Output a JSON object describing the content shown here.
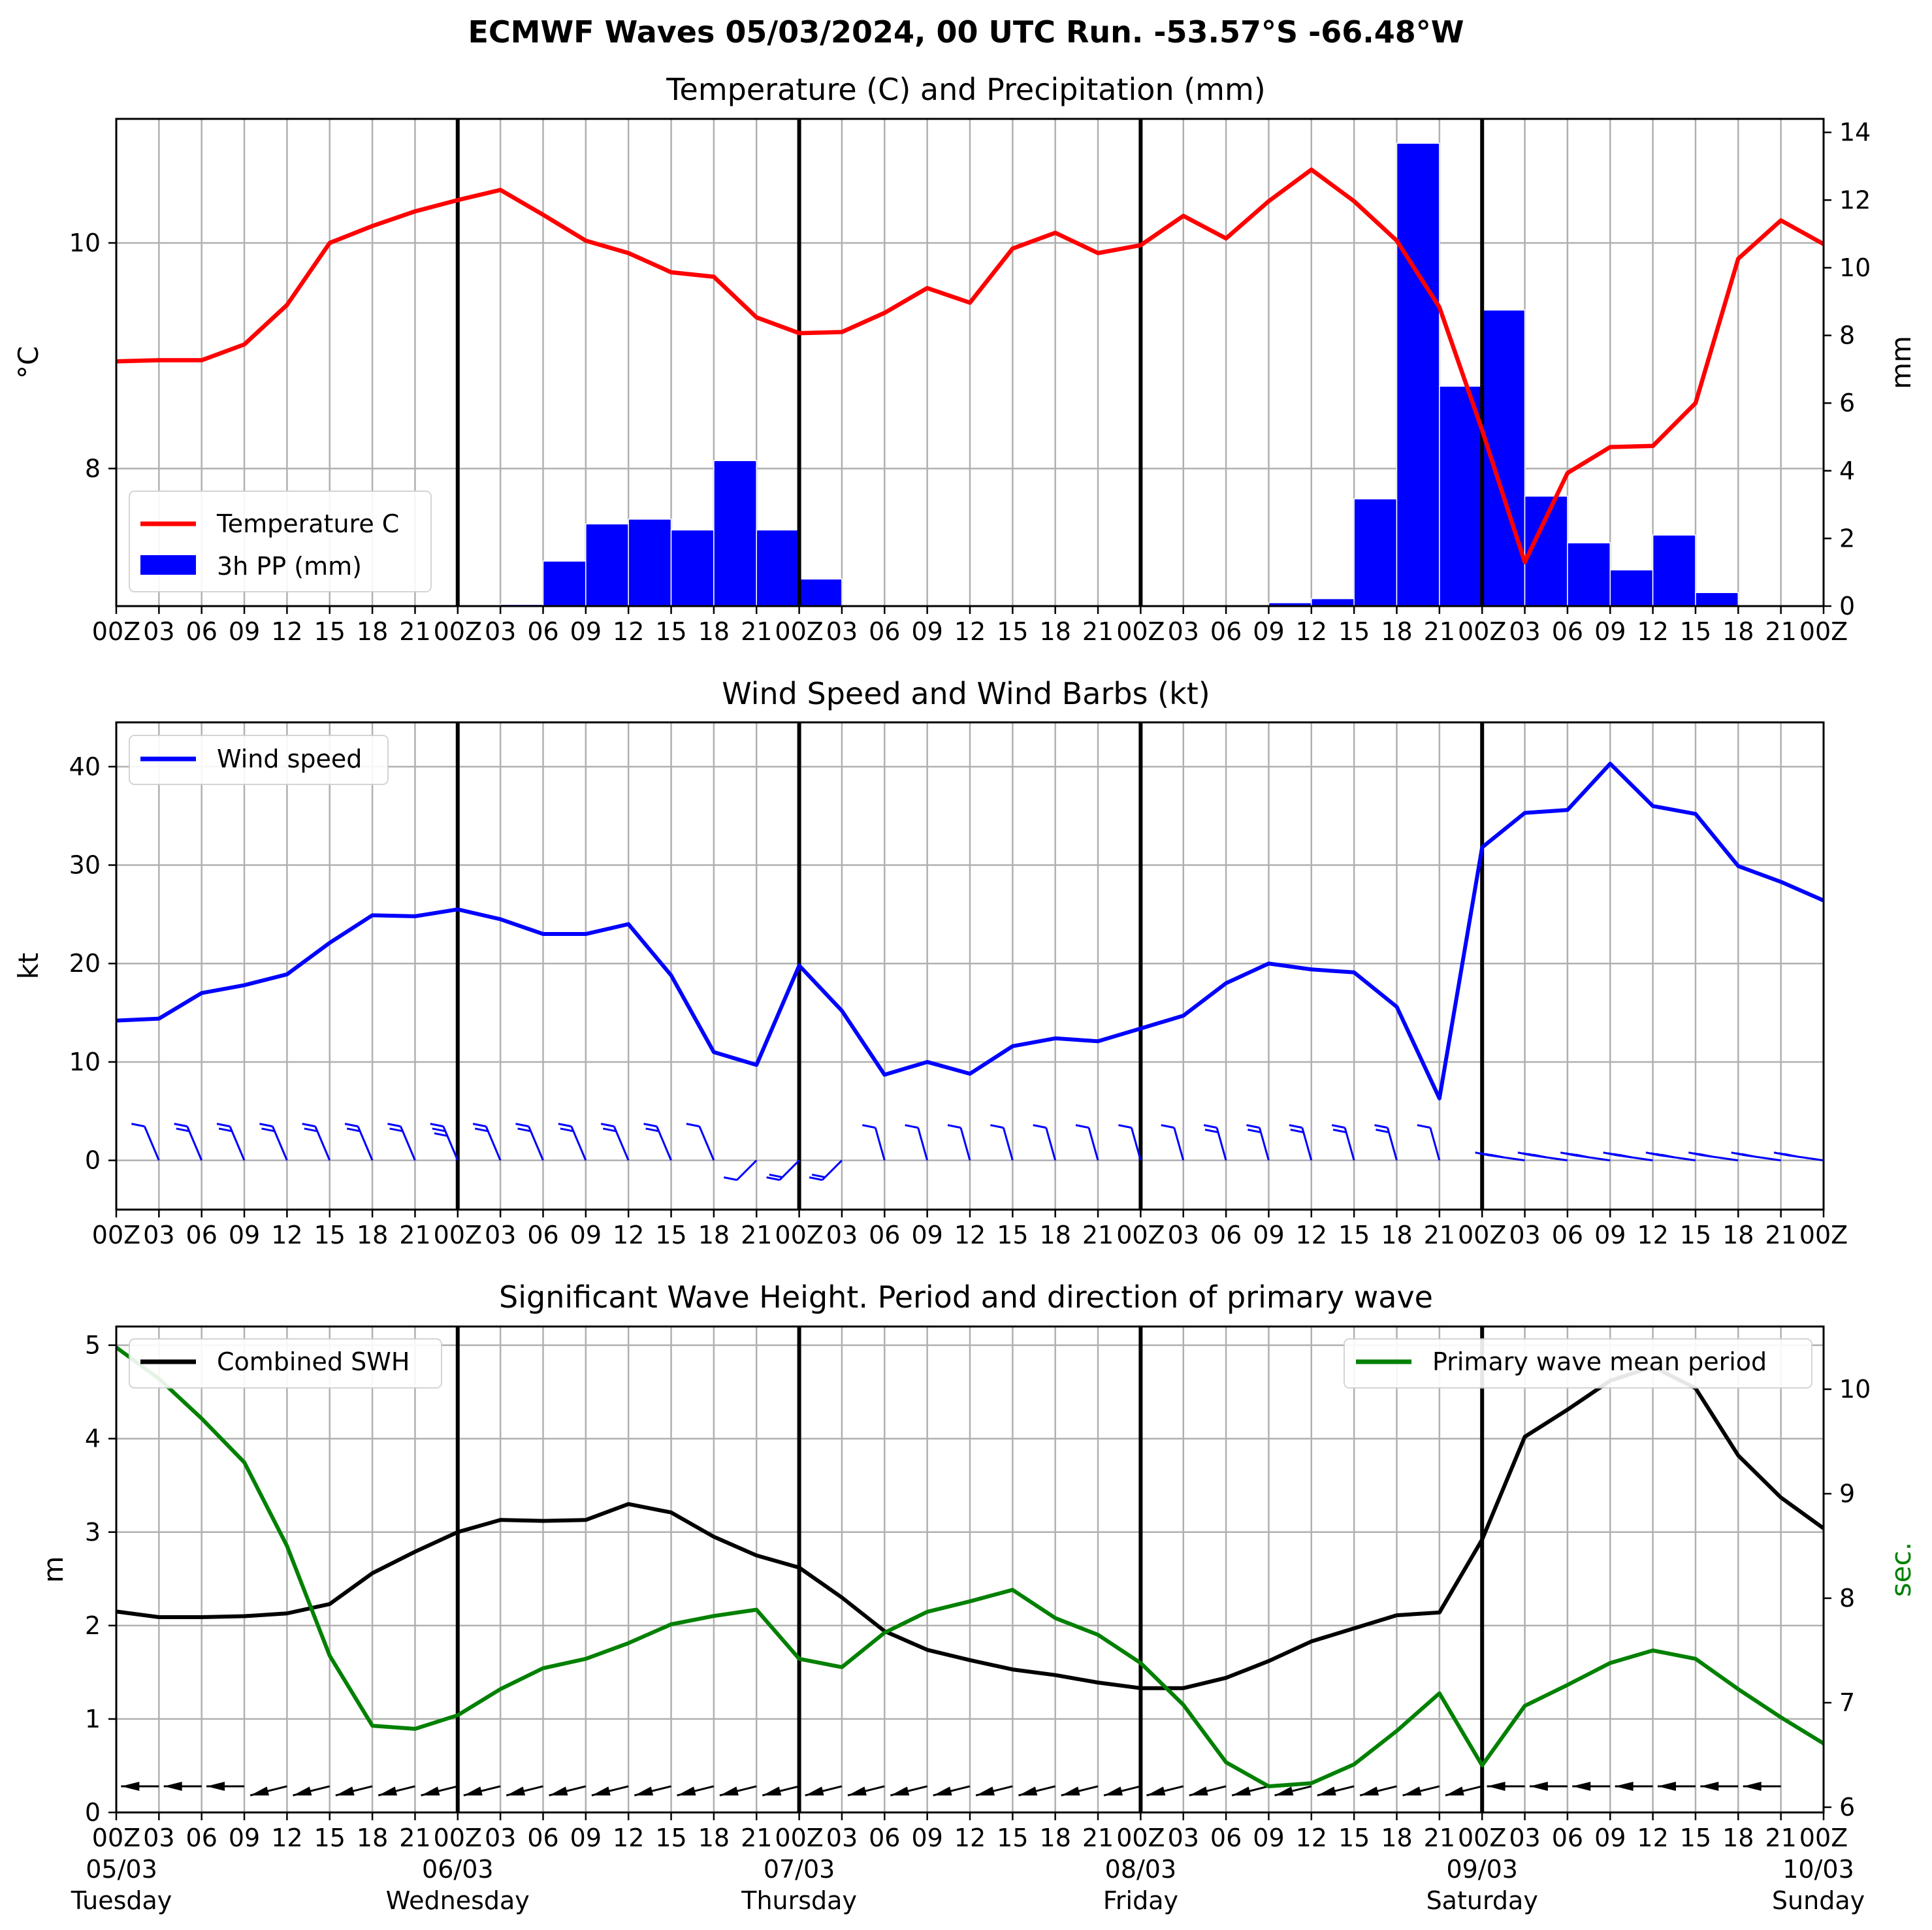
{
  "title": "ECMWF Waves 05/03/2024, 00 UTC Run. -53.57°S -66.48°W",
  "colors": {
    "temperature": "#ff0000",
    "precip": "#0000ff",
    "wind": "#0000ff",
    "swh": "#000000",
    "period": "#008000",
    "grid": "#b0b0b0"
  },
  "x_ticks": {
    "panel": [
      "00Z",
      "03",
      "06",
      "09",
      "12",
      "15",
      "18",
      "21",
      "00Z",
      "03",
      "06",
      "09",
      "12",
      "15",
      "18",
      "21",
      "00Z",
      "03",
      "06",
      "09",
      "12",
      "15",
      "18",
      "21",
      "00Z",
      "03",
      "06",
      "09",
      "12",
      "15",
      "18",
      "21",
      "00Z",
      "03",
      "06",
      "09",
      "12",
      "15",
      "18",
      "21",
      "00Z"
    ],
    "days": [
      {
        "date": "05/03",
        "weekday": "Tuesday"
      },
      {
        "date": "06/03",
        "weekday": "Wednesday"
      },
      {
        "date": "07/03",
        "weekday": "Thursday"
      },
      {
        "date": "08/03",
        "weekday": "Friday"
      },
      {
        "date": "09/03",
        "weekday": "Saturday"
      },
      {
        "date": "10/03",
        "weekday": "Sunday"
      }
    ]
  },
  "chart_data": [
    {
      "type": "line",
      "title": "Temperature (C) and Precipitation (mm)",
      "ylabel": "$^\\circ$C",
      "y2label": "mm",
      "x_hours": [
        0,
        3,
        6,
        9,
        12,
        15,
        18,
        21,
        24,
        27,
        30,
        33,
        36,
        39,
        42,
        45,
        48,
        51,
        54,
        57,
        60,
        63,
        66,
        69,
        72,
        75,
        78,
        81,
        84,
        87,
        90,
        93,
        96,
        99,
        102,
        105,
        108,
        111,
        114,
        117,
        120
      ],
      "ylim": [
        6.78,
        11.1
      ],
      "yticks": [
        8,
        10
      ],
      "y2lim": [
        0,
        14.4
      ],
      "y2ticks": [
        0,
        2,
        4,
        6,
        8,
        10,
        12,
        14
      ],
      "series": [
        {
          "name": "Temperature C",
          "type": "line",
          "values": [
            8.95,
            8.96,
            8.96,
            9.1,
            9.45,
            10.0,
            10.15,
            10.28,
            10.38,
            10.47,
            10.25,
            10.02,
            9.91,
            9.74,
            9.7,
            9.34,
            9.2,
            9.21,
            9.38,
            9.6,
            9.47,
            9.95,
            10.09,
            9.91,
            9.98,
            10.24,
            10.04,
            10.37,
            10.65,
            10.37,
            10.02,
            9.43,
            8.34,
            7.17,
            7.96,
            8.19,
            8.2,
            8.58,
            9.86,
            10.2,
            9.99
          ]
        },
        {
          "name": "3h PP (mm)",
          "type": "bar",
          "axis": "right",
          "values": [
            0,
            0,
            0,
            0,
            0,
            0,
            0,
            0,
            0,
            0.05,
            1.33,
            2.43,
            2.57,
            2.25,
            4.3,
            2.25,
            0.8,
            0,
            0,
            0,
            0,
            0,
            0,
            0,
            0,
            0,
            0,
            0.1,
            0.22,
            3.17,
            13.68,
            6.5,
            8.75,
            3.25,
            1.87,
            1.07,
            2.1,
            0.4,
            0,
            0
          ]
        }
      ]
    },
    {
      "type": "line",
      "title": "Wind Speed and Wind Barbs (kt)",
      "ylabel": "kt",
      "x_hours": [
        0,
        3,
        6,
        9,
        12,
        15,
        18,
        21,
        24,
        27,
        30,
        33,
        36,
        39,
        42,
        45,
        48,
        51,
        54,
        57,
        60,
        63,
        66,
        69,
        72,
        75,
        78,
        81,
        84,
        87,
        90,
        93,
        96,
        99,
        102,
        105,
        108,
        111,
        114,
        117,
        120
      ],
      "ylim": [
        -5,
        44.5
      ],
      "yticks": [
        0,
        10,
        20,
        30,
        40
      ],
      "series": [
        {
          "name": "Wind speed",
          "values": [
            14.2,
            14.4,
            17.0,
            17.8,
            18.9,
            22.1,
            24.9,
            24.8,
            25.5,
            24.5,
            23.0,
            23.0,
            24.0,
            18.8,
            11.0,
            9.7,
            19.8,
            15.2,
            8.7,
            10.0,
            8.8,
            11.6,
            12.4,
            12.1,
            13.4,
            14.7,
            18.0,
            20.0,
            19.4,
            19.1,
            15.6,
            6.3,
            31.8,
            35.3,
            35.6,
            40.3,
            36.0,
            35.2,
            29.9,
            28.3,
            26.4
          ]
        }
      ]
    },
    {
      "type": "line",
      "title": "Significant Wave Height. Period and direction of primary wave",
      "ylabel": "m",
      "y2label": "sec.",
      "x_hours": [
        0,
        3,
        6,
        9,
        12,
        15,
        18,
        21,
        24,
        27,
        30,
        33,
        36,
        39,
        42,
        45,
        48,
        51,
        54,
        57,
        60,
        63,
        66,
        69,
        72,
        75,
        78,
        81,
        84,
        87,
        90,
        93,
        96,
        99,
        102,
        105,
        108,
        111,
        114,
        117,
        120
      ],
      "ylim": [
        0,
        5.2
      ],
      "yticks": [
        0,
        1,
        2,
        3,
        4,
        5
      ],
      "y2lim": [
        5.95,
        10.6
      ],
      "y2ticks": [
        6,
        7,
        8,
        9,
        10
      ],
      "series": [
        {
          "name": "Combined SWH",
          "axis": "left",
          "values": [
            2.15,
            2.09,
            2.09,
            2.1,
            2.13,
            2.23,
            2.56,
            2.79,
            3.0,
            3.13,
            3.12,
            3.13,
            3.3,
            3.21,
            2.95,
            2.75,
            2.62,
            2.3,
            1.94,
            1.74,
            1.63,
            1.53,
            1.47,
            1.39,
            1.33,
            1.33,
            1.44,
            1.62,
            1.83,
            1.97,
            2.11,
            2.14,
            2.92,
            4.02,
            4.31,
            4.62,
            4.77,
            4.54,
            3.82,
            3.37,
            3.04
          ]
        },
        {
          "name": "Primary wave mean period",
          "axis": "right",
          "values": [
            10.4,
            10.1,
            9.72,
            9.3,
            8.5,
            7.45,
            6.78,
            6.75,
            6.88,
            7.13,
            7.33,
            7.42,
            7.57,
            7.75,
            7.83,
            7.89,
            7.42,
            7.34,
            7.67,
            7.87,
            7.97,
            8.08,
            7.81,
            7.65,
            7.38,
            6.98,
            6.43,
            6.2,
            6.23,
            6.41,
            6.73,
            7.09,
            6.4,
            6.97,
            7.17,
            7.38,
            7.5,
            7.42,
            7.13,
            6.86,
            6.61
          ]
        }
      ]
    }
  ]
}
